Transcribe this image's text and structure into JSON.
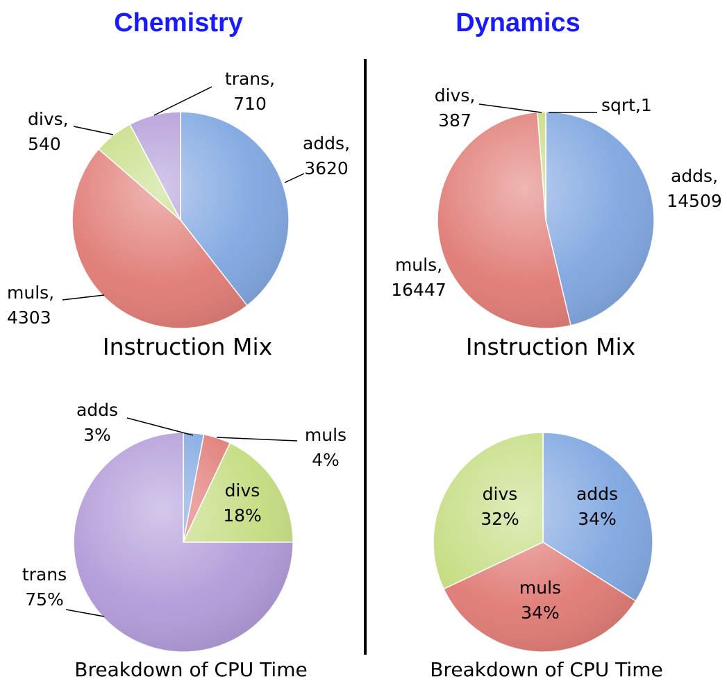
{
  "headings": {
    "left": "Chemistry",
    "right": "Dynamics"
  },
  "captions": {
    "chem_mix": "Instruction Mix",
    "chem_cpu": "Breakdown of CPU Time",
    "dyn_mix": "Instruction Mix",
    "dyn_cpu": "Breakdown of CPU Time"
  },
  "colors": {
    "adds": "#7fa6e0",
    "muls": "#e07a74",
    "divs": "#c4dc80",
    "trans": "#b09ad8",
    "sqrt": "#c4dc80",
    "heading": "#1a1aff"
  },
  "chart_data": [
    {
      "type": "pie",
      "title": "Instruction Mix",
      "group": "Chemistry",
      "slices": [
        {
          "name": "adds",
          "value": 3620,
          "label": [
            "adds,",
            "3620"
          ]
        },
        {
          "name": "muls",
          "value": 4303,
          "label": [
            "muls,",
            "4303"
          ]
        },
        {
          "name": "divs",
          "value": 540,
          "label": [
            "divs,",
            "540"
          ]
        },
        {
          "name": "trans",
          "value": 710,
          "label": [
            "trans,",
            "710"
          ]
        }
      ]
    },
    {
      "type": "pie",
      "title": "Instruction Mix",
      "group": "Dynamics",
      "slices": [
        {
          "name": "adds",
          "value": 14509,
          "label": [
            "adds,",
            "14509"
          ]
        },
        {
          "name": "muls",
          "value": 16447,
          "label": [
            "muls,",
            "16447"
          ]
        },
        {
          "name": "divs",
          "value": 387,
          "label": [
            "divs,",
            "387"
          ]
        },
        {
          "name": "sqrt",
          "value": 1,
          "label": [
            "sqrt,1"
          ]
        }
      ]
    },
    {
      "type": "pie",
      "title": "Breakdown of CPU Time",
      "group": "Chemistry",
      "slices": [
        {
          "name": "adds",
          "value": 3,
          "label": [
            "adds",
            "3%"
          ]
        },
        {
          "name": "muls",
          "value": 4,
          "label": [
            "muls",
            "4%"
          ]
        },
        {
          "name": "divs",
          "value": 18,
          "label": [
            "divs",
            "18%"
          ]
        },
        {
          "name": "trans",
          "value": 75,
          "label": [
            "trans",
            "75%"
          ]
        }
      ]
    },
    {
      "type": "pie",
      "title": "Breakdown of CPU Time",
      "group": "Dynamics",
      "slices": [
        {
          "name": "adds",
          "value": 34,
          "label": [
            "adds",
            "34%"
          ]
        },
        {
          "name": "muls",
          "value": 34,
          "label": [
            "muls",
            "34%"
          ]
        },
        {
          "name": "divs",
          "value": 32,
          "label": [
            "divs",
            "32%"
          ]
        }
      ]
    }
  ]
}
